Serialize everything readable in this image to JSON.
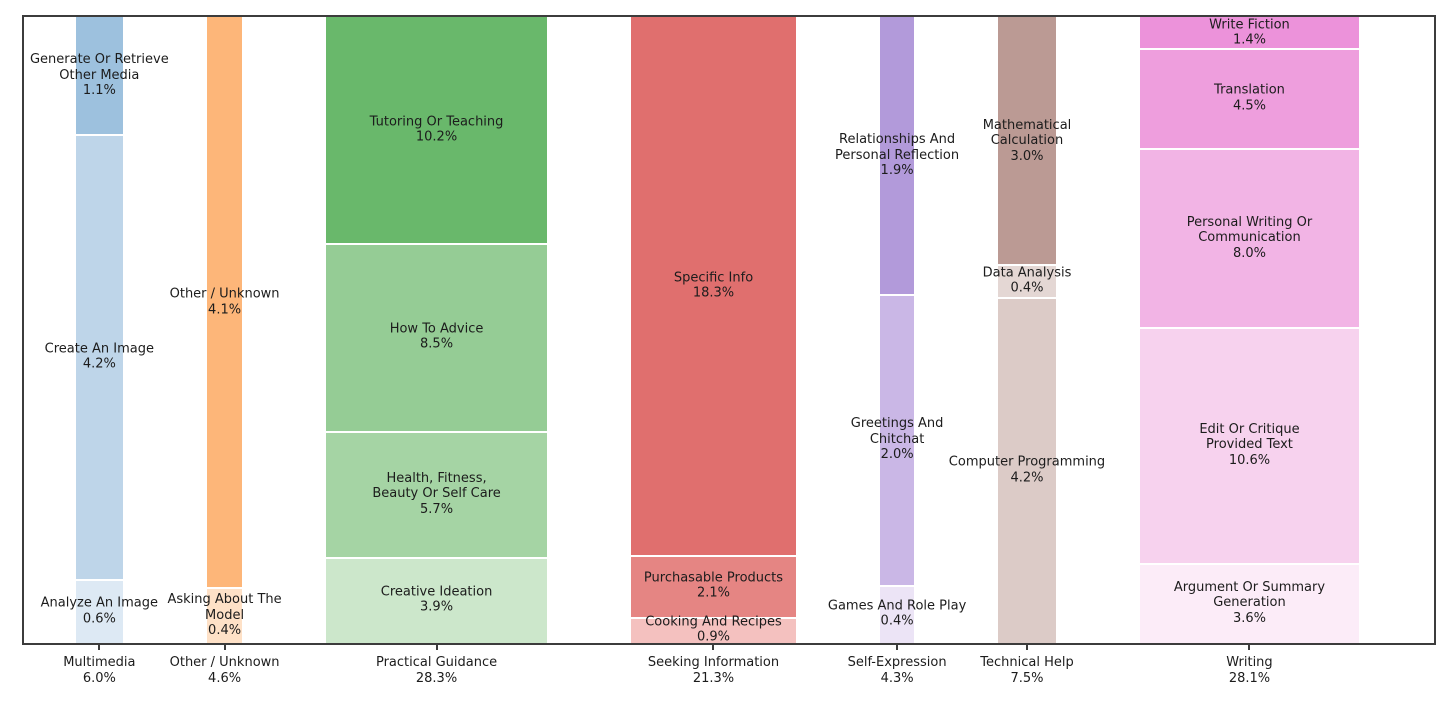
{
  "figure": {
    "background_color": "#ffffff",
    "text_color": "#1c1c1c",
    "frame_color": "#3c3c3c"
  },
  "chart_data": {
    "type": "mosaic",
    "title": "",
    "xlabel": "",
    "ylabel": "",
    "layout_hints": {
      "orientation": "columns normalized to full height",
      "column_width": "proportional to category total percent",
      "grid": "off",
      "frame": "on",
      "segment_separator": "white line",
      "labels": "segment name + percent centered in each segment; category name + total percent below axis"
    },
    "categories": [
      {
        "name": "Multimedia",
        "total": 6.0,
        "total_label": "6.0%",
        "segments": [
          {
            "label": "Generate Or Retrieve\nOther Media",
            "value": 1.1,
            "pct_label": "1.1%",
            "color": "#9dc1de"
          },
          {
            "label": "Create An Image",
            "value": 4.2,
            "pct_label": "4.2%",
            "color": "#bed5e9"
          },
          {
            "label": "Analyze An Image",
            "value": 0.6,
            "pct_label": "0.6%",
            "color": "#dde9f4"
          }
        ]
      },
      {
        "name": "Other / Unknown",
        "total": 4.6,
        "total_label": "4.6%",
        "segments": [
          {
            "label": "Other / Unknown",
            "value": 4.1,
            "pct_label": "4.1%",
            "color": "#fdb679"
          },
          {
            "label": "Asking About The\nModel",
            "value": 0.4,
            "pct_label": "0.4%",
            "color": "#fee1c7"
          }
        ]
      },
      {
        "name": "Practical Guidance",
        "total": 28.3,
        "total_label": "28.3%",
        "segments": [
          {
            "label": "Tutoring Or Teaching",
            "value": 10.2,
            "pct_label": "10.2%",
            "color": "#69b86b"
          },
          {
            "label": "How To Advice",
            "value": 8.5,
            "pct_label": "8.5%",
            "color": "#95cc95"
          },
          {
            "label": "Health, Fitness,\nBeauty Or Self Care",
            "value": 5.7,
            "pct_label": "5.7%",
            "color": "#a5d4a4"
          },
          {
            "label": "Creative Ideation",
            "value": 3.9,
            "pct_label": "3.9%",
            "color": "#cce7cb"
          }
        ]
      },
      {
        "name": "Seeking Information",
        "total": 21.3,
        "total_label": "21.3%",
        "segments": [
          {
            "label": "Specific Info",
            "value": 18.3,
            "pct_label": "18.3%",
            "color": "#e06f6e"
          },
          {
            "label": "Purchasable Products",
            "value": 2.1,
            "pct_label": "2.1%",
            "color": "#e58583"
          },
          {
            "label": "Cooking And Recipes",
            "value": 0.9,
            "pct_label": "0.9%",
            "color": "#f4c1bf"
          }
        ]
      },
      {
        "name": "Self-Expression",
        "total": 4.3,
        "total_label": "4.3%",
        "segments": [
          {
            "label": "Relationships And\nPersonal Reflection",
            "value": 1.9,
            "pct_label": "1.9%",
            "color": "#b29ada"
          },
          {
            "label": "Greetings And\nChitchat",
            "value": 2.0,
            "pct_label": "2.0%",
            "color": "#cab7e6"
          },
          {
            "label": "Games And Role Play",
            "value": 0.4,
            "pct_label": "0.4%",
            "color": "#ece4f6"
          }
        ]
      },
      {
        "name": "Technical Help",
        "total": 7.5,
        "total_label": "7.5%",
        "segments": [
          {
            "label": "Mathematical\nCalculation",
            "value": 3.0,
            "pct_label": "3.0%",
            "color": "#bb9a94"
          },
          {
            "label": "Data Analysis",
            "value": 0.4,
            "pct_label": "0.4%",
            "color": "#e4d7d4"
          },
          {
            "label": "Computer Programming",
            "value": 4.2,
            "pct_label": "4.2%",
            "color": "#dccbc7"
          }
        ]
      },
      {
        "name": "Writing",
        "total": 28.1,
        "total_label": "28.1%",
        "segments": [
          {
            "label": "Write Fiction",
            "value": 1.4,
            "pct_label": "1.4%",
            "color": "#ec92da"
          },
          {
            "label": "Translation",
            "value": 4.5,
            "pct_label": "4.5%",
            "color": "#ee9edd"
          },
          {
            "label": "Personal Writing Or\nCommunication",
            "value": 8.0,
            "pct_label": "8.0%",
            "color": "#f2b4e5"
          },
          {
            "label": "Edit Or Critique\nProvided Text",
            "value": 10.6,
            "pct_label": "10.6%",
            "color": "#f7d2ee"
          },
          {
            "label": "Argument Or Summary\nGeneration",
            "value": 3.6,
            "pct_label": "3.6%",
            "color": "#fcecf8"
          }
        ]
      }
    ]
  }
}
